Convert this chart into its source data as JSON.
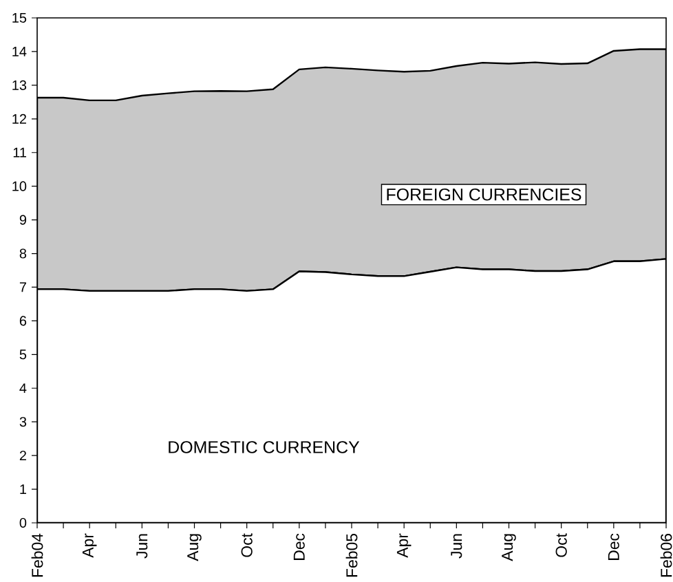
{
  "chart_data": {
    "type": "area",
    "stacked": true,
    "categories": [
      "Feb04",
      null,
      "Apr",
      null,
      "Jun",
      null,
      "Aug",
      null,
      "Oct",
      null,
      "Dec",
      null,
      "Feb05",
      null,
      "Apr",
      null,
      "Jun",
      null,
      "Aug",
      null,
      "Oct",
      null,
      "Dec",
      null,
      "Feb06"
    ],
    "series": [
      {
        "name": "DOMESTIC CURRENCY",
        "color": "#ffffff",
        "values": [
          6.94,
          6.94,
          6.89,
          6.89,
          6.89,
          6.89,
          6.94,
          6.94,
          6.89,
          6.94,
          7.47,
          7.45,
          7.38,
          7.33,
          7.33,
          7.46,
          7.59,
          7.53,
          7.53,
          7.48,
          7.48,
          7.53,
          7.77,
          7.77,
          7.84
        ]
      },
      {
        "name": "FOREIGN CURRENCIES",
        "color": "#c8c8c8",
        "values": [
          5.69,
          5.69,
          5.66,
          5.66,
          5.8,
          5.87,
          5.88,
          5.89,
          5.93,
          5.94,
          6.0,
          6.08,
          6.11,
          6.11,
          6.07,
          5.97,
          5.98,
          6.14,
          6.11,
          6.2,
          6.15,
          6.12,
          6.25,
          6.3,
          6.23
        ]
      }
    ],
    "ylim": [
      0,
      15
    ],
    "yticks": [
      0,
      1,
      2,
      3,
      4,
      5,
      6,
      7,
      8,
      9,
      10,
      11,
      12,
      13,
      14,
      15
    ]
  }
}
